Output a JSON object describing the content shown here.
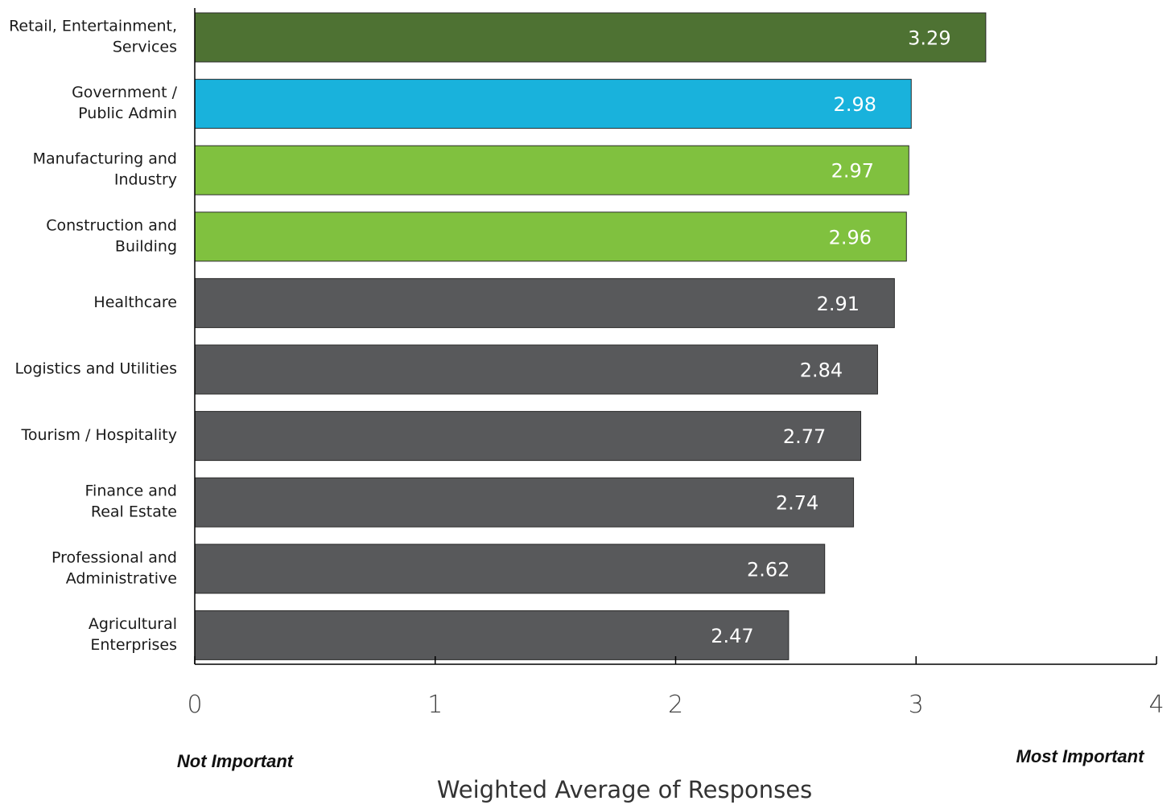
{
  "chart_data": {
    "type": "bar",
    "orientation": "horizontal",
    "categories": [
      [
        "Retail, Entertainment,",
        "Services"
      ],
      [
        "Government  /",
        "Public Admin"
      ],
      [
        "Manufacturing and",
        "Industry"
      ],
      [
        "Construction and",
        "Building"
      ],
      [
        "Healthcare"
      ],
      [
        "Logistics and Utilities"
      ],
      [
        "Tourism / Hospitality"
      ],
      [
        "Finance and",
        "Real Estate"
      ],
      [
        "Professional and",
        "Administrative"
      ],
      [
        "Agricultural",
        "Enterprises"
      ]
    ],
    "values": [
      3.29,
      2.98,
      2.97,
      2.96,
      2.91,
      2.84,
      2.77,
      2.74,
      2.62,
      2.47
    ],
    "value_labels": [
      "3.29",
      "2.98",
      "2.97",
      "2.96",
      "2.91",
      "2.84",
      "2.77",
      "2.74",
      "2.62",
      "2.47"
    ],
    "bar_colors": [
      "#4e7233",
      "#19b2dc",
      "#80c13f",
      "#80c13f",
      "#58595b",
      "#58595b",
      "#58595b",
      "#58595b",
      "#58595b",
      "#58595b"
    ],
    "xlim": [
      0,
      4
    ],
    "xticks": [
      0,
      1,
      2,
      3,
      4
    ],
    "xlabel": "Weighted Average of Responses",
    "xlabel_left_end": "Not Important",
    "xlabel_right_end": "Most Important",
    "grid": false
  }
}
